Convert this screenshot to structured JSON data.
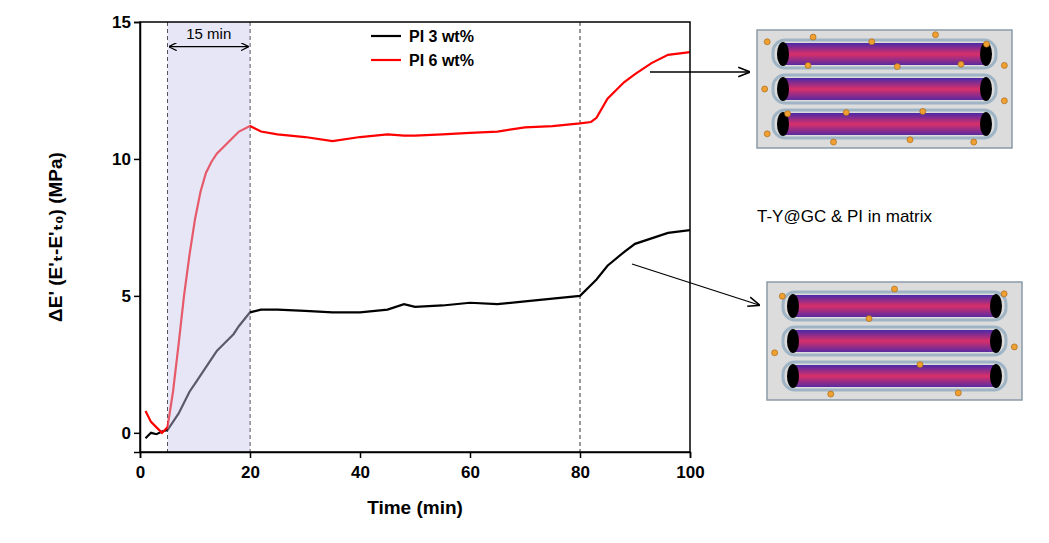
{
  "chart_data": {
    "type": "line",
    "x_label": "Time (min)",
    "y_label": "ΔE' (E'ₜ-E'ₜ₀) (MPa)",
    "xlim": [
      0,
      100
    ],
    "ylim": [
      -0.7,
      15
    ],
    "xticks": [
      0,
      20,
      40,
      60,
      80,
      100
    ],
    "yticks": [
      0,
      5,
      10,
      15
    ],
    "grid": false,
    "legend": "top",
    "x": [
      1,
      2,
      3,
      4,
      5,
      6,
      7,
      8,
      9,
      10,
      11,
      12,
      13,
      14,
      15,
      16,
      17,
      18,
      20,
      22,
      25,
      30,
      35,
      40,
      45,
      48,
      50,
      55,
      60,
      65,
      70,
      75,
      80,
      82,
      83,
      85,
      88,
      90,
      93,
      96,
      100
    ],
    "series": [
      {
        "name": "PI 3 wt%",
        "color": "#000000",
        "line_style": "solid",
        "values": [
          -0.2,
          0.0,
          -0.05,
          0.05,
          0.1,
          0.4,
          0.7,
          1.1,
          1.5,
          1.8,
          2.1,
          2.4,
          2.7,
          3.0,
          3.2,
          3.4,
          3.6,
          3.9,
          4.4,
          4.5,
          4.5,
          4.45,
          4.4,
          4.4,
          4.5,
          4.7,
          4.6,
          4.65,
          4.75,
          4.7,
          4.8,
          4.9,
          5.0,
          5.4,
          5.6,
          6.1,
          6.6,
          6.9,
          7.1,
          7.3,
          7.4
        ]
      },
      {
        "name": "PI 6 wt%",
        "color": "#ff0000",
        "line_style": "solid",
        "values": [
          0.8,
          0.4,
          0.2,
          0.0,
          0.2,
          1.5,
          3.2,
          5.0,
          6.5,
          7.8,
          8.8,
          9.5,
          9.9,
          10.2,
          10.4,
          10.6,
          10.8,
          11.0,
          11.2,
          11.0,
          10.9,
          10.8,
          10.65,
          10.8,
          10.9,
          10.85,
          10.85,
          10.9,
          10.95,
          11.0,
          11.15,
          11.2,
          11.3,
          11.35,
          11.5,
          12.2,
          12.8,
          13.1,
          13.5,
          13.8,
          13.9
        ]
      }
    ],
    "vlines": [
      5,
      20,
      80
    ],
    "span": [
      5,
      20
    ],
    "annotations": [
      {
        "text": "15 min",
        "x": [
          5,
          20
        ],
        "y": 14.1
      }
    ]
  },
  "schematic": {
    "label": "T-Y@GC & PI in matrix"
  }
}
